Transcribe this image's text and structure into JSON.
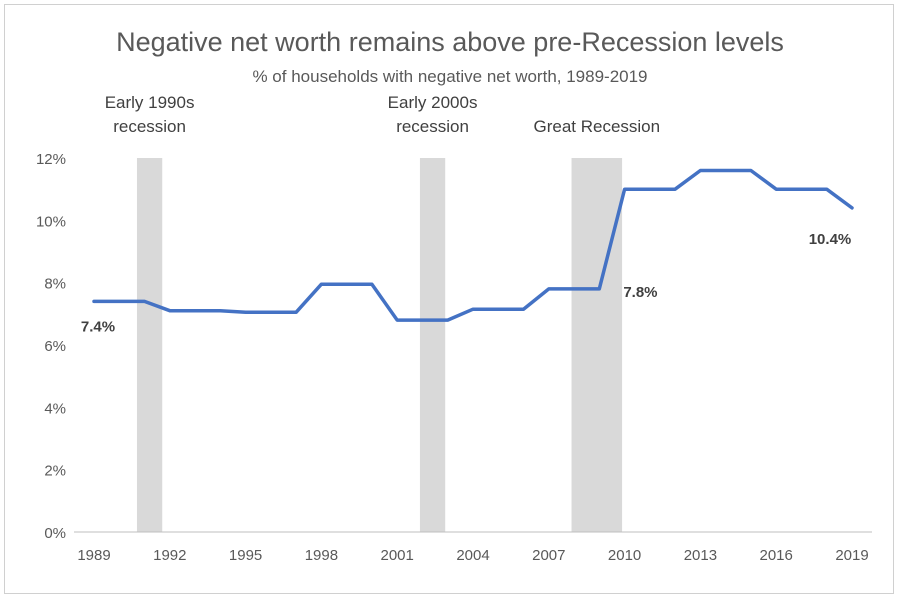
{
  "chart_data": {
    "type": "line",
    "title": "Negative net worth remains above pre-Recession levels",
    "subtitle": "% of households with negative net worth, 1989-2019",
    "xlabel": "",
    "ylabel": "",
    "ylim": [
      0,
      12
    ],
    "xlim": [
      1989,
      2019
    ],
    "y_ticks": [
      "0%",
      "2%",
      "4%",
      "6%",
      "8%",
      "10%",
      "12%"
    ],
    "x_ticks": [
      "1989",
      "1992",
      "1995",
      "1998",
      "2001",
      "2004",
      "2007",
      "2010",
      "2013",
      "2016",
      "2019"
    ],
    "grid": false,
    "line_color": "#4472C4",
    "band_color": "#D9D9D9",
    "series": [
      {
        "x": [
          1989,
          1991,
          1992,
          1994,
          1995,
          1997,
          1998,
          2000,
          2001,
          2003,
          2004,
          2006,
          2007,
          2009,
          2010,
          2012,
          2013,
          2015,
          2016,
          2018,
          2019
        ],
        "values": [
          7.4,
          7.4,
          7.1,
          7.1,
          7.05,
          7.05,
          7.95,
          7.95,
          6.8,
          6.8,
          7.15,
          7.15,
          7.8,
          7.8,
          11.0,
          11.0,
          11.6,
          11.6,
          11.0,
          11.0,
          10.4
        ]
      }
    ],
    "recessions": [
      {
        "label_lines": [
          "Early 1990s",
          "recession"
        ],
        "start": 1990.7,
        "end": 1991.7
      },
      {
        "label_lines": [
          "Early 2000s",
          "recession"
        ],
        "start": 2001.9,
        "end": 2002.9
      },
      {
        "label_lines": [
          "Great Recession"
        ],
        "start": 2007.9,
        "end": 2009.9
      }
    ],
    "data_labels": [
      {
        "text": "7.4%",
        "x": 1989,
        "y": 7.4
      },
      {
        "text": "7.8%",
        "x": 2009,
        "y": 7.8
      },
      {
        "text": "10.4%",
        "x": 2019,
        "y": 10.4
      }
    ]
  }
}
